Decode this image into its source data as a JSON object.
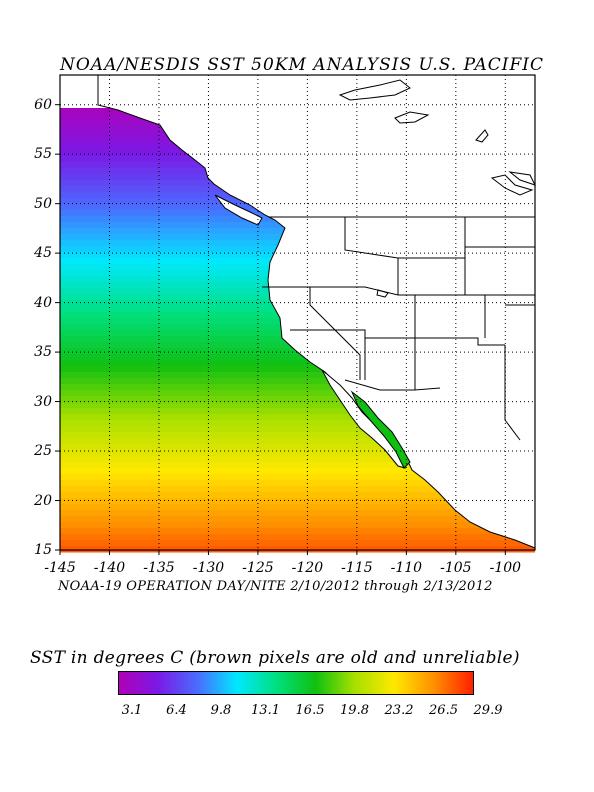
{
  "title": "NOAA/NESDIS SST 50KM ANALYSIS U.S. PACIFIC",
  "subtitle": "NOAA-19 OPERATION DAY/NITE  2/10/2012 through 2/13/2012",
  "map": {
    "lon_range": [
      -145,
      -97
    ],
    "lat_range": [
      15,
      63
    ],
    "x_ticks": [
      "-145",
      "-140",
      "-135",
      "-130",
      "-125",
      "-120",
      "-115",
      "-110",
      "-105",
      "-100"
    ],
    "y_ticks": [
      "15",
      "20",
      "25",
      "30",
      "35",
      "40",
      "45",
      "50",
      "55",
      "60"
    ],
    "grid": "dotted"
  },
  "legend": {
    "title": "SST in degrees C (brown pixels are old and unreliable)",
    "labels": [
      "3.1",
      "6.4",
      "9.8",
      "13.1",
      "16.5",
      "19.8",
      "23.2",
      "26.5",
      "29.9"
    ],
    "colors": [
      "#b000b8",
      "#7a1ae6",
      "#4a6cff",
      "#00e8ff",
      "#00e080",
      "#10c010",
      "#a8e000",
      "#ffe800",
      "#ff9000",
      "#ff2000"
    ]
  }
}
